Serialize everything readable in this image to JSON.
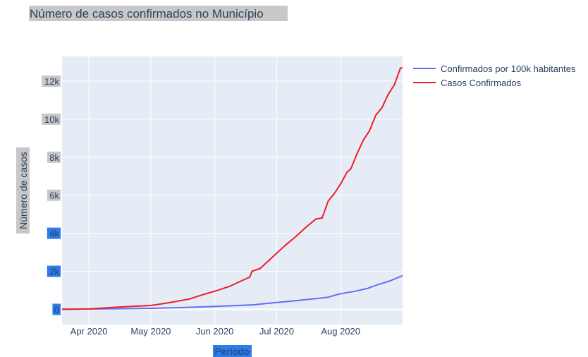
{
  "chart_data": {
    "type": "line",
    "title": "Número de casos confirmados no Município",
    "xlabel": "Período",
    "ylabel": "Número de casos",
    "x_range": [
      "2020-03-19",
      "2020-08-31"
    ],
    "ylim": [
      -800,
      13300
    ],
    "grid": true,
    "legend_position": "top-right outside",
    "x_ticks": [
      {
        "date": "2020-04-01",
        "label": "Apr 2020"
      },
      {
        "date": "2020-05-01",
        "label": "May 2020"
      },
      {
        "date": "2020-06-01",
        "label": "Jun 2020"
      },
      {
        "date": "2020-07-01",
        "label": "Jul 2020"
      },
      {
        "date": "2020-08-01",
        "label": "Aug 2020"
      }
    ],
    "y_ticks": [
      {
        "value": 0,
        "label": "0"
      },
      {
        "value": 2000,
        "label": "2k"
      },
      {
        "value": 4000,
        "label": "4k"
      },
      {
        "value": 6000,
        "label": "6k"
      },
      {
        "value": 8000,
        "label": "8k"
      },
      {
        "value": 10000,
        "label": "10k"
      },
      {
        "value": 12000,
        "label": "12k"
      }
    ],
    "series": [
      {
        "name": "Confirmados por 100k habitantes",
        "color": "#636efa",
        "points": [
          [
            "2020-03-19",
            0
          ],
          [
            "2020-04-01",
            15
          ],
          [
            "2020-04-15",
            30
          ],
          [
            "2020-05-01",
            55
          ],
          [
            "2020-05-15",
            90
          ],
          [
            "2020-06-01",
            150
          ],
          [
            "2020-06-10",
            195
          ],
          [
            "2020-06-20",
            240
          ],
          [
            "2020-06-25",
            300
          ],
          [
            "2020-07-01",
            360
          ],
          [
            "2020-07-10",
            450
          ],
          [
            "2020-07-20",
            560
          ],
          [
            "2020-07-26",
            640
          ],
          [
            "2020-07-31",
            800
          ],
          [
            "2020-08-03",
            860
          ],
          [
            "2020-08-08",
            950
          ],
          [
            "2020-08-14",
            1100
          ],
          [
            "2020-08-19",
            1300
          ],
          [
            "2020-08-25",
            1500
          ],
          [
            "2020-08-31",
            1770
          ]
        ]
      },
      {
        "name": "Casos Confirmados",
        "color": "#ef1c2c",
        "points": [
          [
            "2020-03-19",
            0
          ],
          [
            "2020-04-01",
            20
          ],
          [
            "2020-04-15",
            120
          ],
          [
            "2020-05-01",
            200
          ],
          [
            "2020-05-10",
            350
          ],
          [
            "2020-05-20",
            550
          ],
          [
            "2020-05-27",
            800
          ],
          [
            "2020-06-01",
            950
          ],
          [
            "2020-06-08",
            1200
          ],
          [
            "2020-06-13",
            1450
          ],
          [
            "2020-06-18",
            1700
          ],
          [
            "2020-06-19",
            2000
          ],
          [
            "2020-06-23",
            2150
          ],
          [
            "2020-06-28",
            2650
          ],
          [
            "2020-07-05",
            3350
          ],
          [
            "2020-07-10",
            3800
          ],
          [
            "2020-07-15",
            4300
          ],
          [
            "2020-07-20",
            4750
          ],
          [
            "2020-07-23",
            4800
          ],
          [
            "2020-07-26",
            5700
          ],
          [
            "2020-07-29",
            6100
          ],
          [
            "2020-08-01",
            6600
          ],
          [
            "2020-08-04",
            7200
          ],
          [
            "2020-08-06",
            7400
          ],
          [
            "2020-08-09",
            8200
          ],
          [
            "2020-08-12",
            8900
          ],
          [
            "2020-08-15",
            9400
          ],
          [
            "2020-08-18",
            10200
          ],
          [
            "2020-08-21",
            10600
          ],
          [
            "2020-08-24",
            11300
          ],
          [
            "2020-08-27",
            11800
          ],
          [
            "2020-08-30",
            12700
          ],
          [
            "2020-08-31",
            12700
          ]
        ]
      }
    ]
  }
}
